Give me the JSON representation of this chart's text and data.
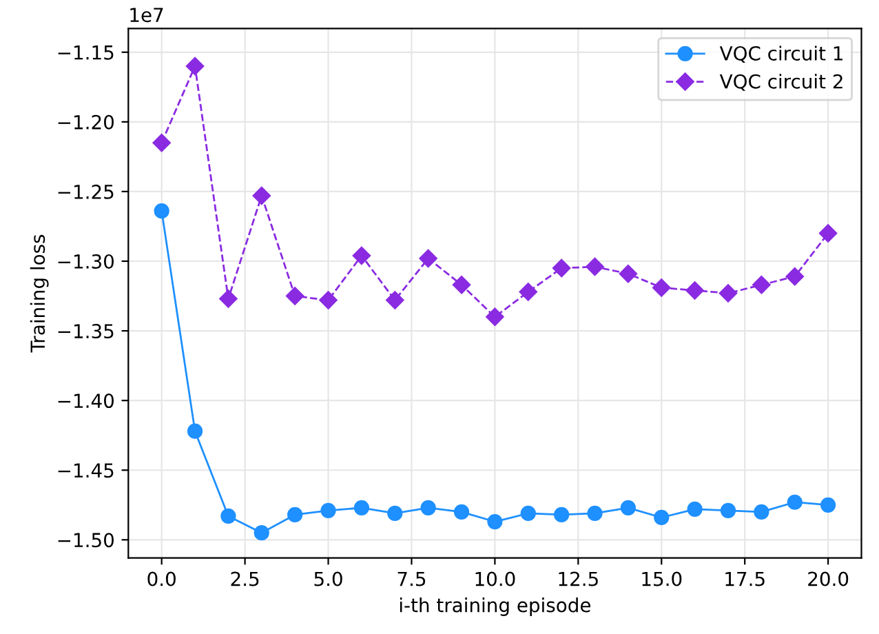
{
  "chart_data": {
    "type": "line",
    "xlabel": "i-th training episode",
    "ylabel": "Training loss",
    "annotations": [
      "1e7"
    ],
    "x": [
      0,
      1,
      2,
      3,
      4,
      5,
      6,
      7,
      8,
      9,
      10,
      11,
      12,
      13,
      14,
      15,
      16,
      17,
      18,
      19,
      20
    ],
    "series": [
      {
        "name": "VQC circuit 1",
        "color": "#1e90ff",
        "marker": "circle",
        "line_style": "solid",
        "values": [
          -1.264,
          -1.422,
          -1.483,
          -1.495,
          -1.482,
          -1.479,
          -1.477,
          -1.481,
          -1.477,
          -1.48,
          -1.487,
          -1.481,
          -1.482,
          -1.481,
          -1.477,
          -1.484,
          -1.478,
          -1.479,
          -1.48,
          -1.473,
          -1.475
        ]
      },
      {
        "name": "VQC circuit 2",
        "color": "#8a2be2",
        "marker": "diamond",
        "line_style": "dashed",
        "values": [
          -1.215,
          -1.16,
          -1.327,
          -1.253,
          -1.325,
          -1.328,
          -1.296,
          -1.328,
          -1.298,
          -1.317,
          -1.34,
          -1.322,
          -1.305,
          -1.304,
          -1.309,
          -1.319,
          -1.321,
          -1.323,
          -1.317,
          -1.311,
          -1.28
        ]
      }
    ],
    "xlim": [
      -1,
      21
    ],
    "ylim": [
      -1.513,
      -1.133
    ],
    "xticks": [
      {
        "value": 0,
        "label": "0.0"
      },
      {
        "value": 2.5,
        "label": "2.5"
      },
      {
        "value": 5,
        "label": "5.0"
      },
      {
        "value": 7.5,
        "label": "7.5"
      },
      {
        "value": 10,
        "label": "10.0"
      },
      {
        "value": 12.5,
        "label": "12.5"
      },
      {
        "value": 15,
        "label": "15.0"
      },
      {
        "value": 17.5,
        "label": "17.5"
      },
      {
        "value": 20,
        "label": "20.0"
      }
    ],
    "yticks": [
      {
        "value": -1.5,
        "label": "−1.50"
      },
      {
        "value": -1.45,
        "label": "−1.45"
      },
      {
        "value": -1.4,
        "label": "−1.40"
      },
      {
        "value": -1.35,
        "label": "−1.35"
      },
      {
        "value": -1.3,
        "label": "−1.30"
      },
      {
        "value": -1.25,
        "label": "−1.25"
      },
      {
        "value": -1.2,
        "label": "−1.20"
      },
      {
        "value": -1.15,
        "label": "−1.15"
      }
    ],
    "grid": true,
    "legend": "top right"
  }
}
